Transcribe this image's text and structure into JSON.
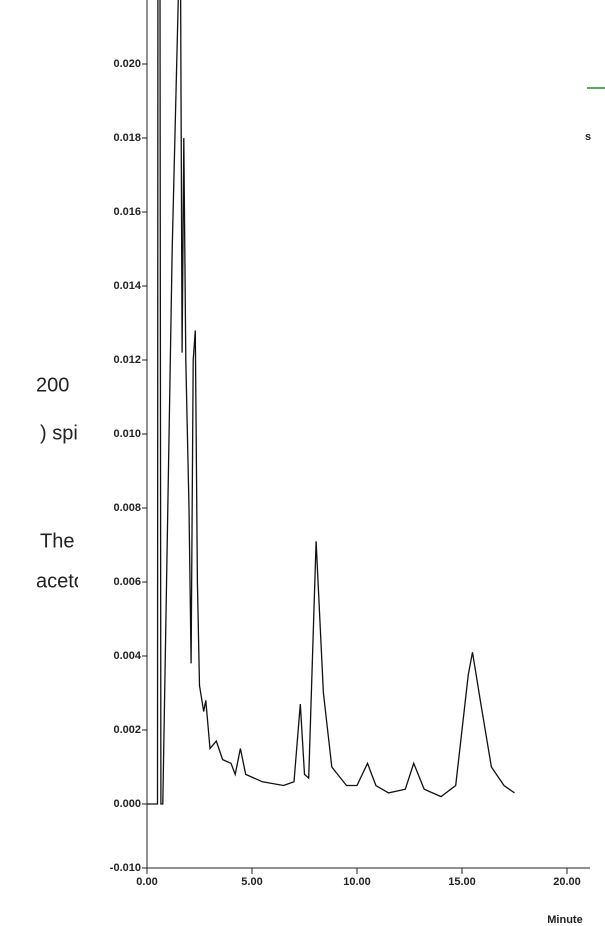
{
  "chart_data": {
    "type": "line",
    "annotations": [
      "200",
      ") spik",
      "The",
      "aceto",
      "s"
    ],
    "x_label": "Minute",
    "xlim": [
      0,
      21
    ],
    "xticks": [
      {
        "value": 0,
        "label": "0.00"
      },
      {
        "value": 5,
        "label": "5.00"
      },
      {
        "value": 10,
        "label": "10.00"
      },
      {
        "value": 15,
        "label": "15.00"
      },
      {
        "value": 20,
        "label": "20.00"
      }
    ],
    "ylim": [
      -0.01,
      0.0217
    ],
    "yticks": [
      {
        "value": -0.01,
        "label": "-0.010"
      },
      {
        "value": 0,
        "label": "0.000"
      },
      {
        "value": 0.002,
        "label": "0.002"
      },
      {
        "value": 0.004,
        "label": "0.004"
      },
      {
        "value": 0.006,
        "label": "0.006"
      },
      {
        "value": 0.008,
        "label": "0.008"
      },
      {
        "value": 0.01,
        "label": "0.010"
      },
      {
        "value": 0.012,
        "label": "0.012"
      },
      {
        "value": 0.014,
        "label": "0.014"
      },
      {
        "value": 0.016,
        "label": "0.016"
      },
      {
        "value": 0.018,
        "label": "0.018"
      },
      {
        "value": 0.02,
        "label": "0.020"
      }
    ],
    "color": "#111111",
    "x": [
      0,
      0.5,
      0.52,
      0.62,
      0.66,
      0.75,
      1.2,
      1.5,
      1.6,
      1.67,
      1.75,
      1.85,
      2.0,
      2.1,
      2.2,
      2.3,
      2.4,
      2.5,
      2.7,
      2.8,
      3.0,
      3.3,
      3.6,
      4.0,
      4.2,
      4.45,
      4.7,
      5.5,
      6.5,
      7.0,
      7.3,
      7.5,
      7.7,
      8.05,
      8.4,
      8.8,
      9.5,
      10.0,
      10.5,
      10.9,
      11.5,
      12.3,
      12.7,
      13.2,
      14.0,
      14.7,
      15.3,
      15.5,
      15.9,
      16.4,
      17.0,
      17.5
    ],
    "values": [
      0,
      0,
      0.022,
      0.022,
      0,
      0,
      0.015,
      0.022,
      0.022,
      0.0122,
      0.018,
      0.012,
      0.008,
      0.0038,
      0.012,
      0.0128,
      0.006,
      0.0032,
      0.0025,
      0.0028,
      0.0015,
      0.0017,
      0.0012,
      0.0011,
      0.0008,
      0.0015,
      0.0008,
      0.0006,
      0.0005,
      0.0006,
      0.0027,
      0.0008,
      0.0007,
      0.0071,
      0.003,
      0.001,
      0.0005,
      0.0005,
      0.0011,
      0.0005,
      0.0003,
      0.0004,
      0.0011,
      0.0004,
      0.0002,
      0.0005,
      0.0035,
      0.0041,
      0.0027,
      0.001,
      0.0005,
      0.0003
    ]
  }
}
